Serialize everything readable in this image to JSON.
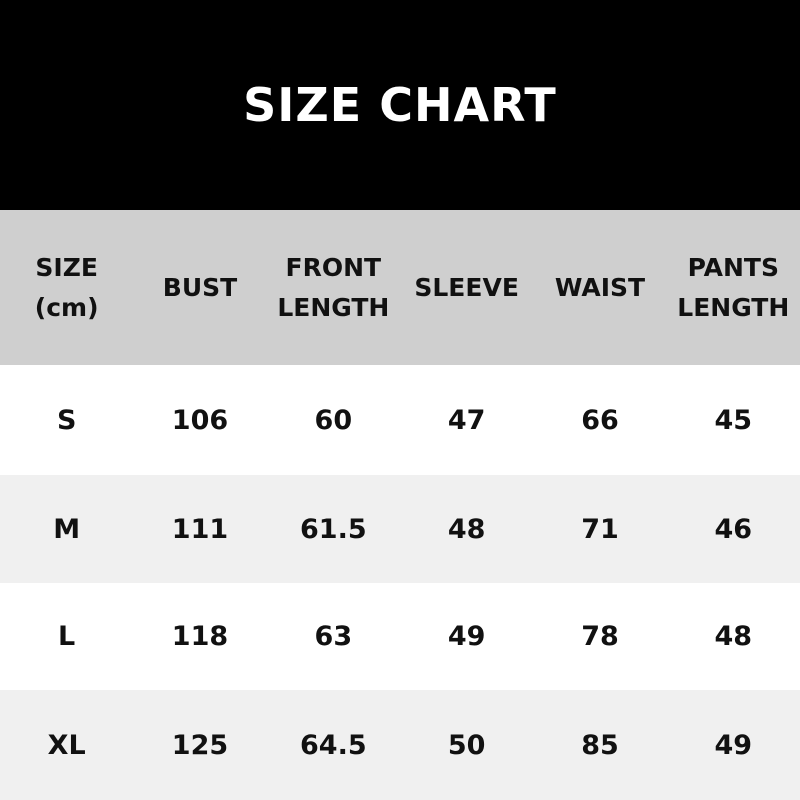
{
  "title": "SIZE CHART",
  "headers": [
    "SIZE\n(cm)",
    "BUST",
    "FRONT\nLENGTH",
    "SLEEVE",
    "WAIST",
    "PANTS\nLENGTH"
  ],
  "rows": [
    [
      "S",
      "106",
      "60",
      "47",
      "66",
      "45"
    ],
    [
      "M",
      "111",
      "61.5",
      "48",
      "71",
      "46"
    ],
    [
      "L",
      "118",
      "63",
      "49",
      "78",
      "48"
    ],
    [
      "XL",
      "125",
      "64.5",
      "50",
      "85",
      "49"
    ]
  ],
  "colors": {
    "title_bg": "#000000",
    "header_bg": "#cfcfcf",
    "alt_row_bg": "#f0f0f0"
  }
}
